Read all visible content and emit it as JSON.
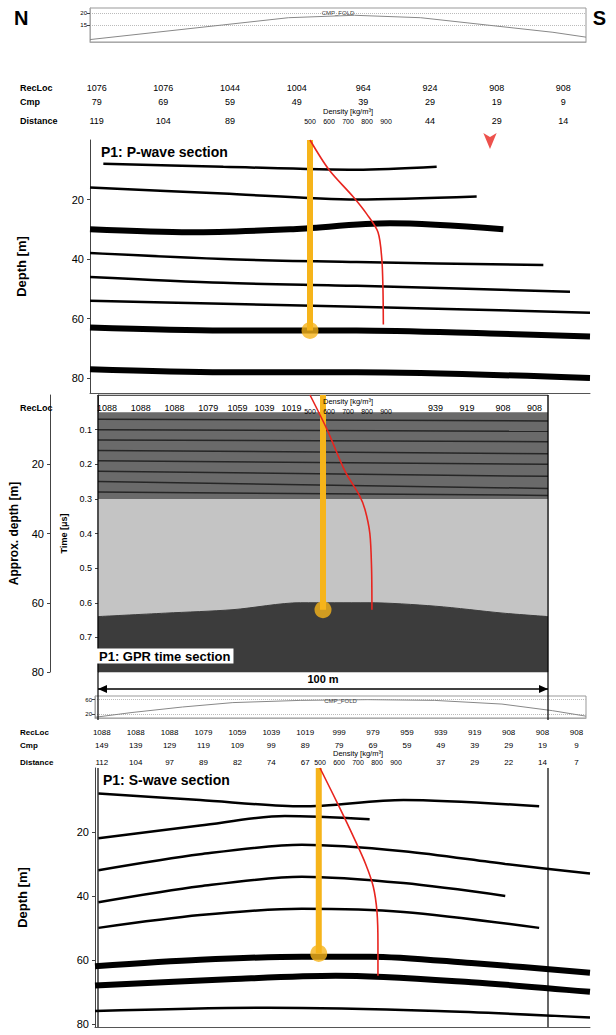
{
  "chart_data": [
    {
      "type": "fold",
      "title": "CMP_FOLD",
      "xlim": [
        80,
        5
      ],
      "ylim": [
        8,
        22
      ],
      "yticks": [
        15,
        20
      ],
      "grid": true,
      "tick_labels": "y",
      "color": "#888888",
      "x": [
        80,
        70,
        60,
        50,
        40,
        30,
        20,
        10,
        5
      ],
      "values": [
        9,
        12,
        15,
        18,
        19,
        18,
        15,
        12,
        10
      ]
    },
    {
      "type": "section",
      "title": "P1: P-wave section",
      "direction_labels": [
        "N",
        "S"
      ],
      "ylabel": "Depth [m]",
      "xlim": [
        80,
        5
      ],
      "ylim": [
        85,
        0
      ],
      "yticks": [
        20,
        40,
        60,
        80
      ],
      "tick_labels": "y",
      "color": "#000000",
      "header": {
        "x": [
          79,
          69,
          59,
          49,
          39,
          29,
          19,
          9
        ],
        "rows": [
          {
            "name": "RecLoc",
            "values": [
              1076,
              1076,
              1044,
              1004,
              964,
              924,
              908,
              908
            ]
          },
          {
            "name": "Cmp",
            "values": [
              79,
              69,
              59,
              49,
              39,
              29,
              19,
              9
            ]
          },
          {
            "name": "Distance",
            "values": [
              119,
              104,
              89,
              null,
              null,
              44,
              29,
              14
            ]
          }
        ]
      },
      "reflectors": [
        {
          "line_style": "solid",
          "values": [
            [
              78,
              8
            ],
            [
              60,
              9
            ],
            [
              40,
              10
            ],
            [
              28,
              9
            ]
          ]
        },
        {
          "line_style": "solid",
          "values": [
            [
              80,
              16
            ],
            [
              60,
              18
            ],
            [
              40,
              20
            ],
            [
              22,
              19
            ]
          ]
        },
        {
          "line_style": "bold",
          "values": [
            [
              80,
              30
            ],
            [
              65,
              31
            ],
            [
              50,
              30
            ],
            [
              35,
              28
            ],
            [
              18,
              30
            ]
          ]
        },
        {
          "line_style": "solid",
          "values": [
            [
              80,
              38
            ],
            [
              60,
              40
            ],
            [
              40,
              41
            ],
            [
              12,
              42
            ]
          ]
        },
        {
          "line_style": "solid",
          "values": [
            [
              80,
              46
            ],
            [
              60,
              48
            ],
            [
              40,
              49
            ],
            [
              8,
              51
            ]
          ]
        },
        {
          "line_style": "solid",
          "values": [
            [
              80,
              54
            ],
            [
              60,
              55
            ],
            [
              40,
              56
            ],
            [
              5,
              58
            ]
          ]
        },
        {
          "line_style": "bold",
          "values": [
            [
              80,
              63
            ],
            [
              60,
              64
            ],
            [
              40,
              64
            ],
            [
              20,
              65
            ],
            [
              5,
              66
            ]
          ]
        },
        {
          "line_style": "bold",
          "values": [
            [
              80,
              77
            ],
            [
              60,
              78
            ],
            [
              40,
              78
            ],
            [
              5,
              80
            ]
          ]
        }
      ],
      "borehole": {
        "x": 47,
        "depth": [
          0,
          64
        ],
        "color": "#f6b41a",
        "marker": "circle"
      },
      "arrow": {
        "x": 20,
        "color": "#e8251f",
        "marker": "arrow"
      },
      "density": {
        "label": "Density [kg/m³]",
        "xlim": [
          500,
          900
        ],
        "xticks": [
          500,
          600,
          700,
          800,
          900
        ],
        "color": "#e8251f",
        "values": [
          [
            500,
            0
          ],
          [
            600,
            10
          ],
          [
            726,
            19
          ],
          [
            800,
            25
          ],
          [
            858,
            31
          ],
          [
            878,
            40
          ],
          [
            884,
            50
          ],
          [
            886,
            62
          ]
        ]
      }
    },
    {
      "type": "gpr",
      "title": "P1: GPR time section",
      "ylabel": "Time [μs]",
      "y2label": "Approx. depth [m]",
      "xlim": [
        0,
        100
      ],
      "ylim": [
        0.8,
        0
      ],
      "yticks": [
        0.1,
        0.2,
        0.3,
        0.4,
        0.5,
        0.6,
        0.7
      ],
      "y2lim": [
        80,
        0
      ],
      "y2ticks": [
        20,
        40,
        60,
        80
      ],
      "tick_labels": "y",
      "header": {
        "x": [
          2,
          9.5,
          17,
          24.5,
          31,
          37,
          43,
          75,
          82,
          90,
          97
        ],
        "rows": [
          {
            "name": "RecLoc",
            "values": [
              1088,
              1088,
              1088,
              1079,
              1059,
              1039,
              1019,
              939,
              919,
              908,
              908
            ]
          }
        ]
      },
      "zones": [
        {
          "t": [
            0.05,
            0.3
          ],
          "color": "#6a6a6a"
        },
        {
          "t": [
            0.3,
            0.8
          ],
          "color": "#c4c4c4"
        }
      ],
      "base": {
        "color": "#3c3c3c",
        "values": [
          [
            0,
            0.64
          ],
          [
            15,
            0.63
          ],
          [
            30,
            0.62
          ],
          [
            45,
            0.6
          ],
          [
            60,
            0.6
          ],
          [
            75,
            0.61
          ],
          [
            90,
            0.63
          ],
          [
            100,
            0.64
          ]
        ]
      },
      "horizons": {
        "color": "#262626",
        "lines": [
          [
            [
              0,
              0.07
            ],
            [
              100,
              0.075
            ]
          ],
          [
            [
              0,
              0.1
            ],
            [
              100,
              0.105
            ]
          ],
          [
            [
              0,
              0.13
            ],
            [
              100,
              0.135
            ]
          ],
          [
            [
              0,
              0.16
            ],
            [
              100,
              0.17
            ]
          ],
          [
            [
              0,
              0.19
            ],
            [
              100,
              0.2
            ]
          ],
          [
            [
              0,
              0.22
            ],
            [
              100,
              0.235
            ]
          ],
          [
            [
              0,
              0.25
            ],
            [
              100,
              0.27
            ]
          ],
          [
            [
              0,
              0.28
            ],
            [
              100,
              0.29
            ]
          ]
        ]
      },
      "scale_bar": {
        "label": "100 m",
        "length": 100
      },
      "borehole": {
        "x": 50,
        "depth": [
          0,
          62
        ],
        "axis": "y2",
        "color": "#f6b41a",
        "marker": "circle"
      },
      "density": {
        "label": "Density [kg/m³]",
        "axis": "y2",
        "xlim": [
          500,
          900
        ],
        "xticks": [
          500,
          600,
          700,
          800,
          900
        ],
        "color": "#e8251f",
        "values": [
          [
            500,
            0
          ],
          [
            590,
            10
          ],
          [
            684,
            22
          ],
          [
            760,
            29
          ],
          [
            789,
            33
          ],
          [
            815,
            40
          ],
          [
            824,
            50
          ],
          [
            826,
            62
          ]
        ]
      }
    },
    {
      "type": "fold",
      "title": "CMP_FOLD",
      "xlim": [
        151,
        5
      ],
      "ylim": [
        10,
        70
      ],
      "yticks": [
        20,
        60
      ],
      "grid": true,
      "tick_labels": "y",
      "color": "#888888",
      "x": [
        151,
        140,
        125,
        110,
        90,
        70,
        50,
        30,
        15,
        5
      ],
      "values": [
        12,
        25,
        40,
        52,
        58,
        60,
        58,
        48,
        30,
        15
      ]
    },
    {
      "type": "section",
      "title": "P1: S-wave section",
      "ylabel": "Depth [m]",
      "xlim": [
        151,
        5
      ],
      "ylim": [
        81,
        0
      ],
      "yticks": [
        20,
        40,
        60,
        80
      ],
      "tick_labels": "y",
      "color": "#000000",
      "header": {
        "x": [
          149,
          139,
          129,
          119,
          109,
          99,
          89,
          79,
          69,
          59,
          49,
          39,
          29,
          19,
          9
        ],
        "rows": [
          {
            "name": "RecLoc",
            "values": [
              1088,
              1088,
              1088,
              1079,
              1059,
              1039,
              1019,
              999,
              979,
              959,
              939,
              919,
              908,
              908,
              908
            ]
          },
          {
            "name": "Cmp",
            "values": [
              149,
              139,
              129,
              119,
              109,
              99,
              89,
              79,
              69,
              59,
              49,
              39,
              29,
              19,
              9
            ]
          },
          {
            "name": "Distance",
            "values": [
              112,
              104,
              97,
              89,
              82,
              74,
              67,
              null,
              null,
              null,
              37,
              29,
              22,
              14,
              7
            ]
          }
        ]
      },
      "reflectors": [
        {
          "line_style": "solid",
          "values": [
            [
              150,
              8
            ],
            [
              120,
              10
            ],
            [
              90,
              12
            ],
            [
              60,
              10
            ],
            [
              20,
              12
            ]
          ]
        },
        {
          "line_style": "solid",
          "values": [
            [
              150,
              22
            ],
            [
              120,
              18
            ],
            [
              95,
              15
            ],
            [
              70,
              16
            ]
          ]
        },
        {
          "line_style": "solid",
          "values": [
            [
              150,
              32
            ],
            [
              120,
              27
            ],
            [
              90,
              24
            ],
            [
              60,
              26
            ],
            [
              30,
              30
            ],
            [
              5,
              33
            ]
          ]
        },
        {
          "line_style": "solid",
          "values": [
            [
              150,
              42
            ],
            [
              120,
              37
            ],
            [
              90,
              34
            ],
            [
              60,
              36
            ],
            [
              30,
              40
            ]
          ]
        },
        {
          "line_style": "solid",
          "values": [
            [
              150,
              50
            ],
            [
              120,
              46
            ],
            [
              90,
              44
            ],
            [
              60,
              45
            ],
            [
              20,
              50
            ]
          ]
        },
        {
          "line_style": "bold",
          "values": [
            [
              151,
              62
            ],
            [
              120,
              60
            ],
            [
              90,
              59
            ],
            [
              70,
              59
            ],
            [
              40,
              61
            ],
            [
              5,
              64
            ]
          ]
        },
        {
          "line_style": "bold",
          "values": [
            [
              151,
              68
            ],
            [
              110,
              66
            ],
            [
              80,
              65
            ],
            [
              40,
              67
            ],
            [
              5,
              70
            ]
          ]
        },
        {
          "line_style": "solid",
          "values": [
            [
              151,
              76
            ],
            [
              100,
              75
            ],
            [
              50,
              76
            ],
            [
              5,
              78
            ]
          ]
        }
      ],
      "borehole": {
        "x": 85,
        "depth": [
          0,
          58
        ],
        "color": "#f6b41a",
        "marker": "circle"
      },
      "density": {
        "label": "Density [kg/m³]",
        "xlim": [
          500,
          900
        ],
        "xticks": [
          500,
          600,
          700,
          800,
          900
        ],
        "color": "#e8251f",
        "values": [
          [
            500,
            0
          ],
          [
            600,
            12
          ],
          [
            680,
            22
          ],
          [
            740,
            30
          ],
          [
            780,
            37
          ],
          [
            800,
            45
          ],
          [
            805,
            55
          ],
          [
            805,
            65
          ]
        ]
      }
    }
  ]
}
